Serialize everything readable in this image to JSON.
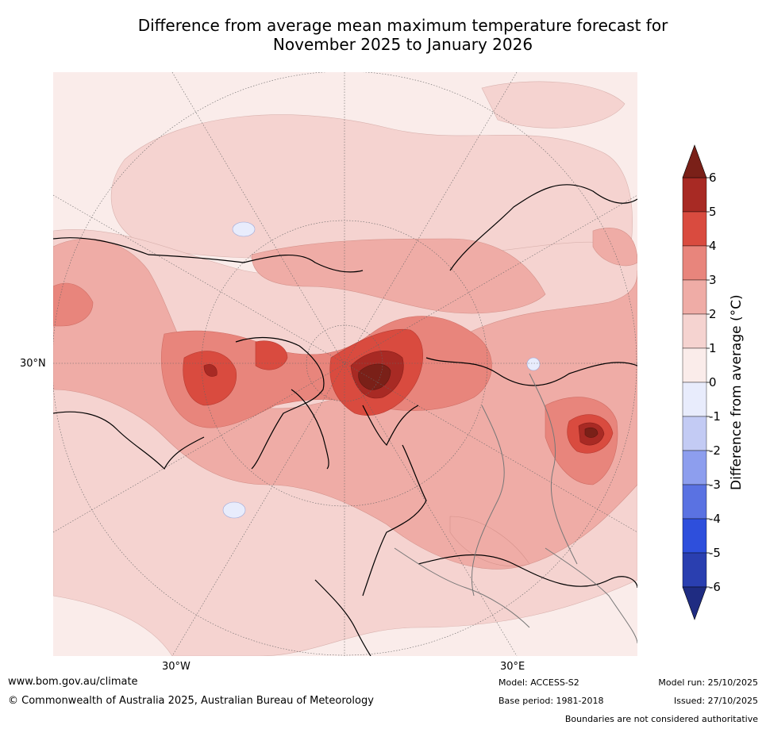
{
  "title_line1": "Difference from average mean maximum temperature forecast for",
  "title_line2": "November 2025 to January 2026",
  "map": {
    "label_lat": "30°N",
    "label_lon_w": "30°W",
    "label_lon_e": "30°E"
  },
  "colorbar": {
    "label": "Difference from average (",
    "label_unit": "°C)",
    "ticks": [
      "6",
      "5",
      "4",
      "3",
      "2",
      "1",
      "0",
      "-1",
      "-2",
      "-3",
      "-4",
      "-5",
      "-6"
    ],
    "colors": [
      "#a82a24",
      "#d94b3f",
      "#e8857c",
      "#efaca6",
      "#f5d3d0",
      "#faecea",
      "#e8ecfc",
      "#c3cbf4",
      "#8d9eee",
      "#5a72e2",
      "#2e4fdc",
      "#2a3fb0"
    ],
    "over_color": "#7a2018",
    "under_color": "#1f2c82"
  },
  "footer": {
    "url": "www.bom.gov.au/climate",
    "copyright": "© Commonwealth of Australia 2025, Australian Bureau of Meteorology",
    "model": "Model: ACCESS-S2",
    "base_period": "Base period: 1981-2018",
    "model_run": "Model run: 25/10/2025",
    "issued": "Issued: 27/10/2025",
    "disclaimer": "Boundaries are not considered authoritative"
  }
}
